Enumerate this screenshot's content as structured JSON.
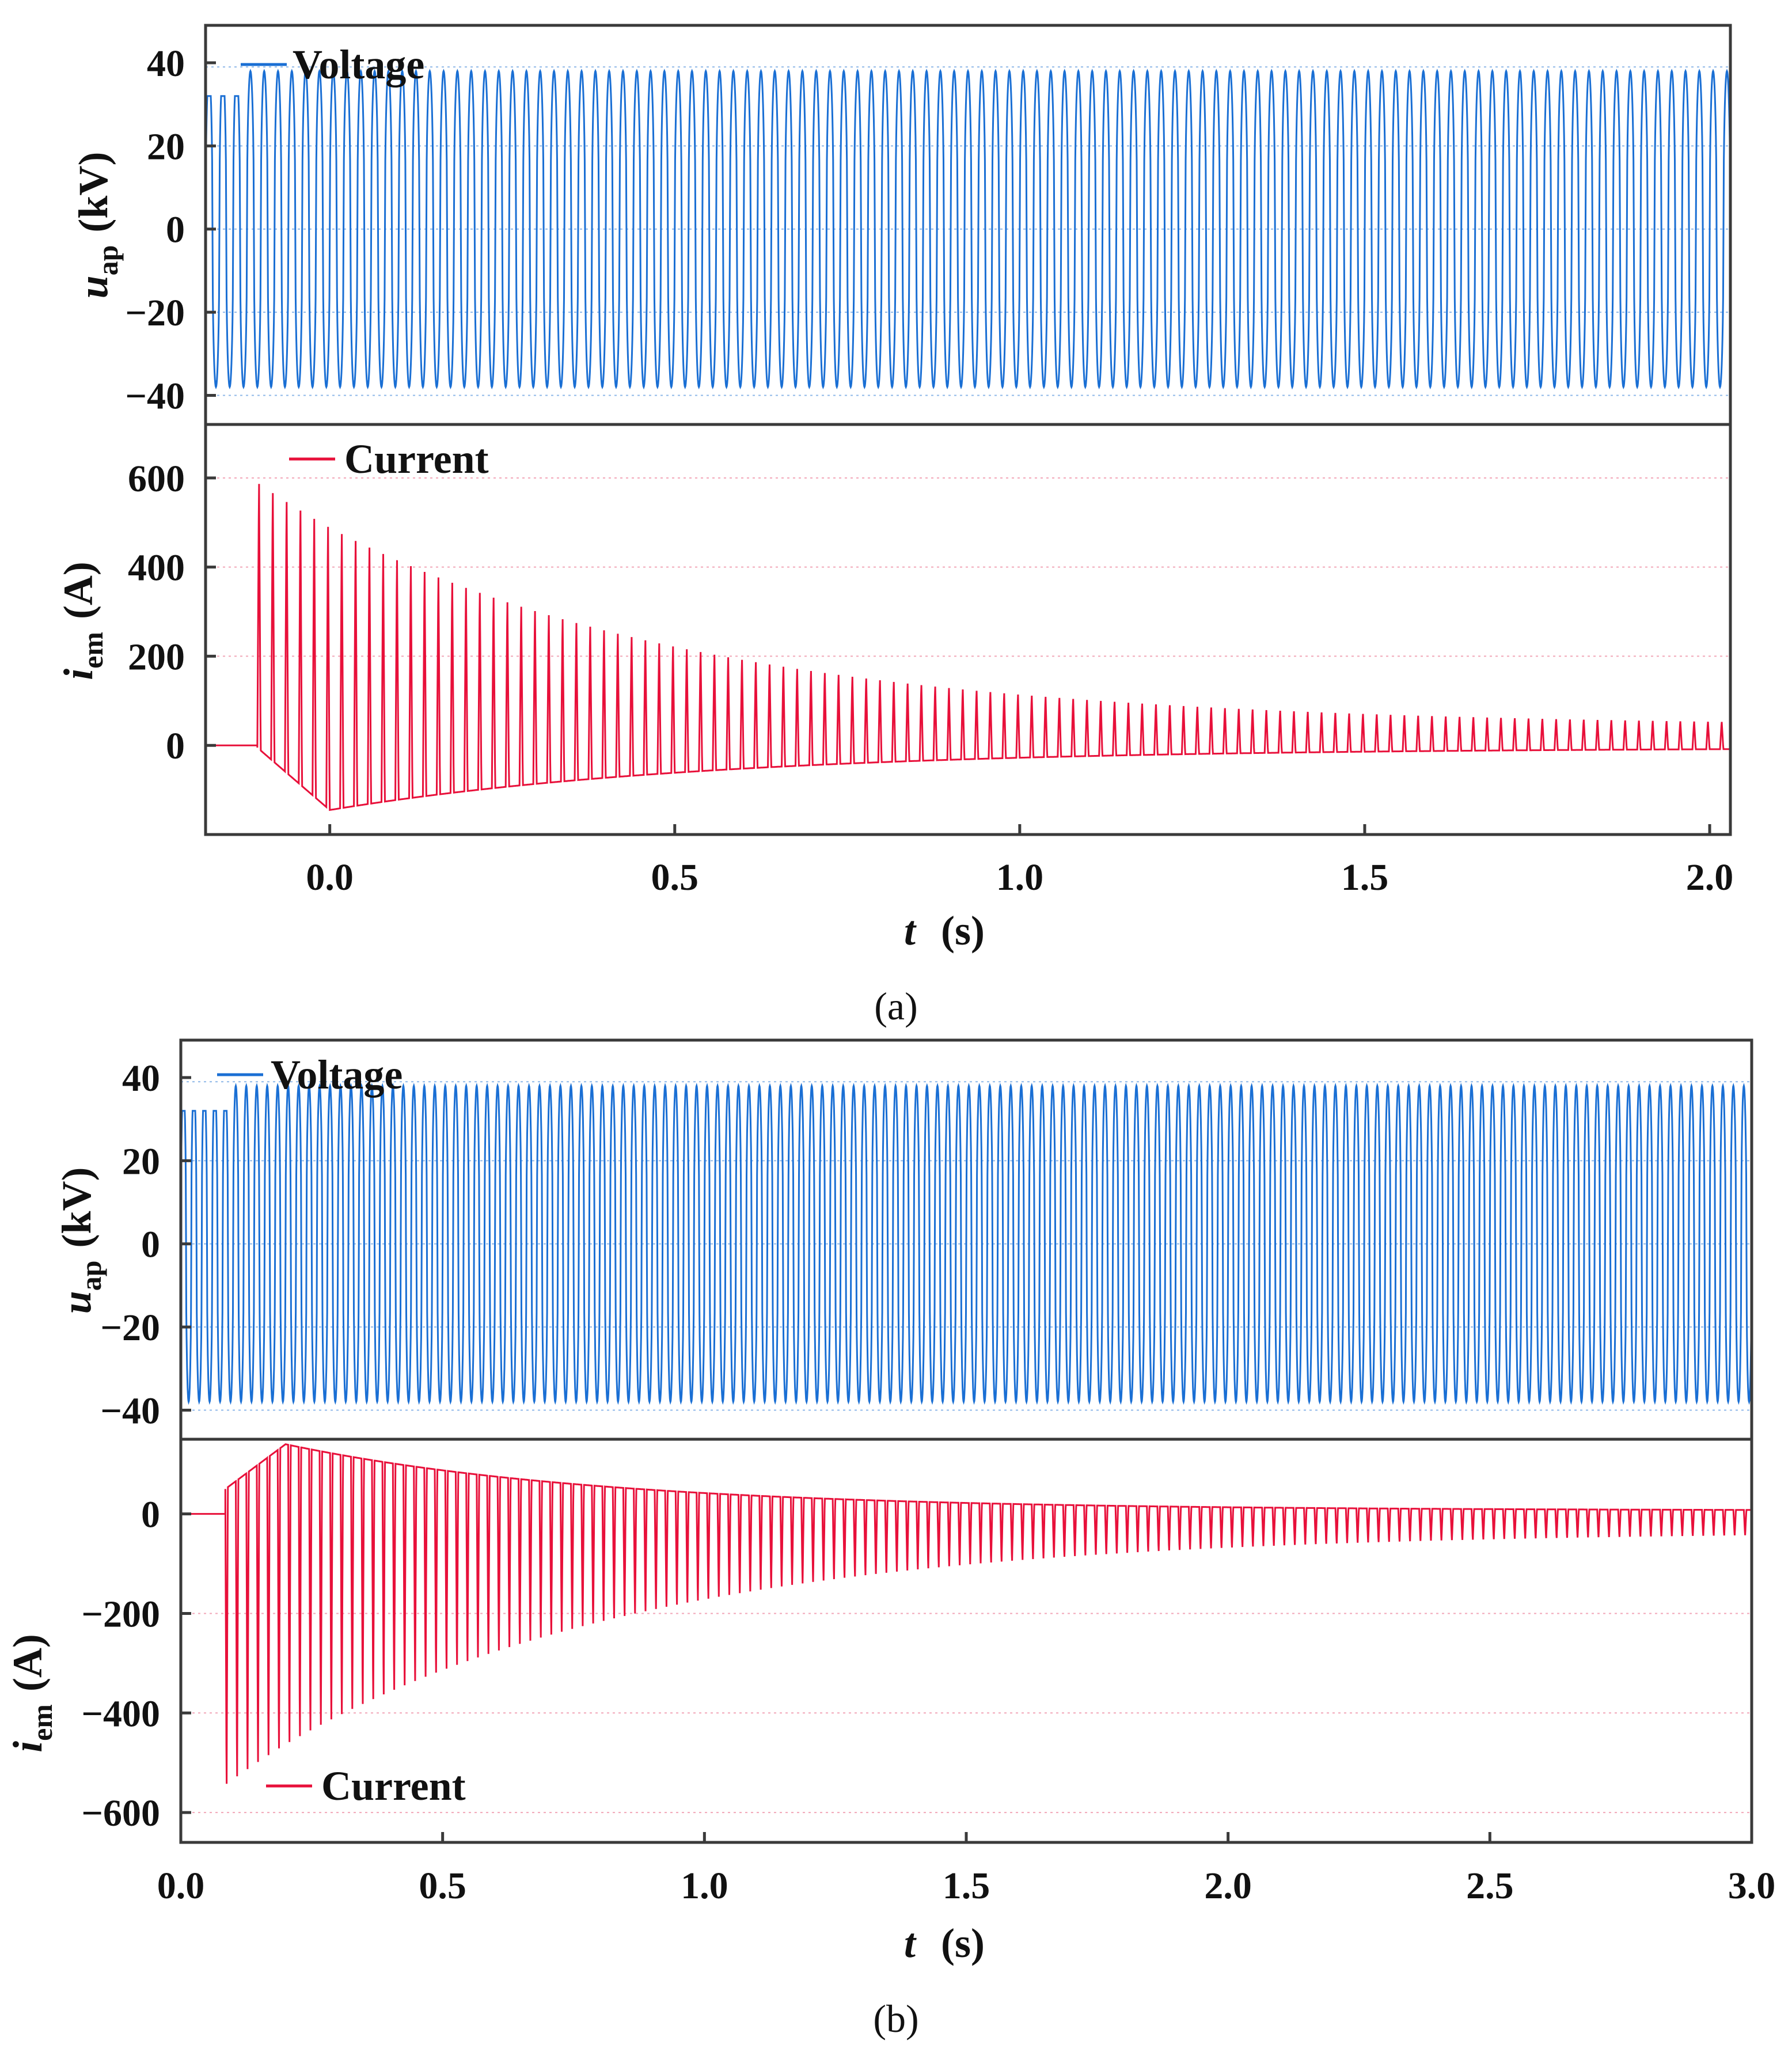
{
  "chart_data": [
    {
      "panel_label": "(a)",
      "type": "line",
      "xlabel": "t",
      "xunit": "(s)",
      "xlim": [
        -0.18,
        2.03
      ],
      "xticks": [
        "0.0",
        "0.5",
        "1.0",
        "1.5",
        "2.0"
      ],
      "xtick_values": [
        0.0,
        0.5,
        1.0,
        1.5,
        2.0
      ],
      "subplots": [
        {
          "name": "voltage",
          "ylabel_main": "u",
          "ylabel_sub": "ap",
          "yunit": "(kV)",
          "ylim": [
            -47,
            49
          ],
          "yticks": [
            "40",
            "20",
            "0",
            "−20",
            "−40"
          ],
          "ytick_values": [
            40,
            20,
            0,
            -20,
            -40
          ],
          "grid_values": [
            39,
            20,
            0,
            -20,
            -40
          ],
          "legend": "Voltage",
          "color": "#1a6fd4",
          "series": {
            "kind": "ac",
            "t_start": -0.18,
            "t_end": 2.03,
            "frequency_hz": 50,
            "amplitude": 38,
            "clip_start": 32,
            "clip_until": -0.12
          }
        },
        {
          "name": "current",
          "ylabel_main": "i",
          "ylabel_sub": "em",
          "yunit": "(A)",
          "ylim": [
            -200,
            720
          ],
          "yticks": [
            "600",
            "400",
            "200",
            "0"
          ],
          "ytick_values": [
            600,
            400,
            200,
            0
          ],
          "grid_values": [
            600,
            400,
            200
          ],
          "legend": "Current",
          "color": "#e8103a",
          "series": {
            "kind": "inrush",
            "t_start": -0.18,
            "t_energize": -0.105,
            "t_end": 2.03,
            "frequency_hz": 50,
            "peak_start": 615,
            "peak_end": 55,
            "trough_start": -145,
            "trough_end": -5,
            "trough_time": 0.0
          }
        }
      ]
    },
    {
      "panel_label": "(b)",
      "type": "line",
      "xlabel": "t",
      "xunit": "(s)",
      "xlim": [
        0.0,
        3.0
      ],
      "xticks": [
        "0.0",
        "0.5",
        "1.0",
        "1.5",
        "2.0",
        "2.5",
        "3.0"
      ],
      "xtick_values": [
        0.0,
        0.5,
        1.0,
        1.5,
        2.0,
        2.5,
        3.0
      ],
      "subplots": [
        {
          "name": "voltage",
          "ylabel_main": "u",
          "ylabel_sub": "ap",
          "yunit": "(kV)",
          "ylim": [
            -47,
            49
          ],
          "yticks": [
            "40",
            "20",
            "0",
            "−20",
            "−40"
          ],
          "ytick_values": [
            40,
            20,
            0,
            -20,
            -40
          ],
          "grid_values": [
            39,
            20,
            0,
            -20,
            -40
          ],
          "legend": "Voltage",
          "color": "#1a6fd4",
          "series": {
            "kind": "ac",
            "t_start": 0.0,
            "t_end": 3.0,
            "frequency_hz": 50,
            "amplitude": 38,
            "clip_start": 32,
            "clip_until": 0.1
          }
        },
        {
          "name": "current",
          "ylabel_main": "i",
          "ylabel_sub": "em",
          "yunit": "(A)",
          "ylim": [
            -660,
            150
          ],
          "yticks": [
            "0",
            "−200",
            "−400",
            "−600"
          ],
          "ytick_values": [
            0,
            -200,
            -400,
            -600
          ],
          "grid_values": [
            -200,
            -400,
            -600
          ],
          "legend": "Current",
          "color": "#e8103a",
          "series": {
            "kind": "inrush_neg",
            "t_start": 0.0,
            "t_energize": 0.085,
            "t_end": 3.0,
            "frequency_hz": 50,
            "trough_start": -570,
            "trough_end": -45,
            "peak_start": 50,
            "peak_max": 140,
            "peak_max_time": 0.2,
            "peak_end": 8
          }
        }
      ]
    }
  ]
}
